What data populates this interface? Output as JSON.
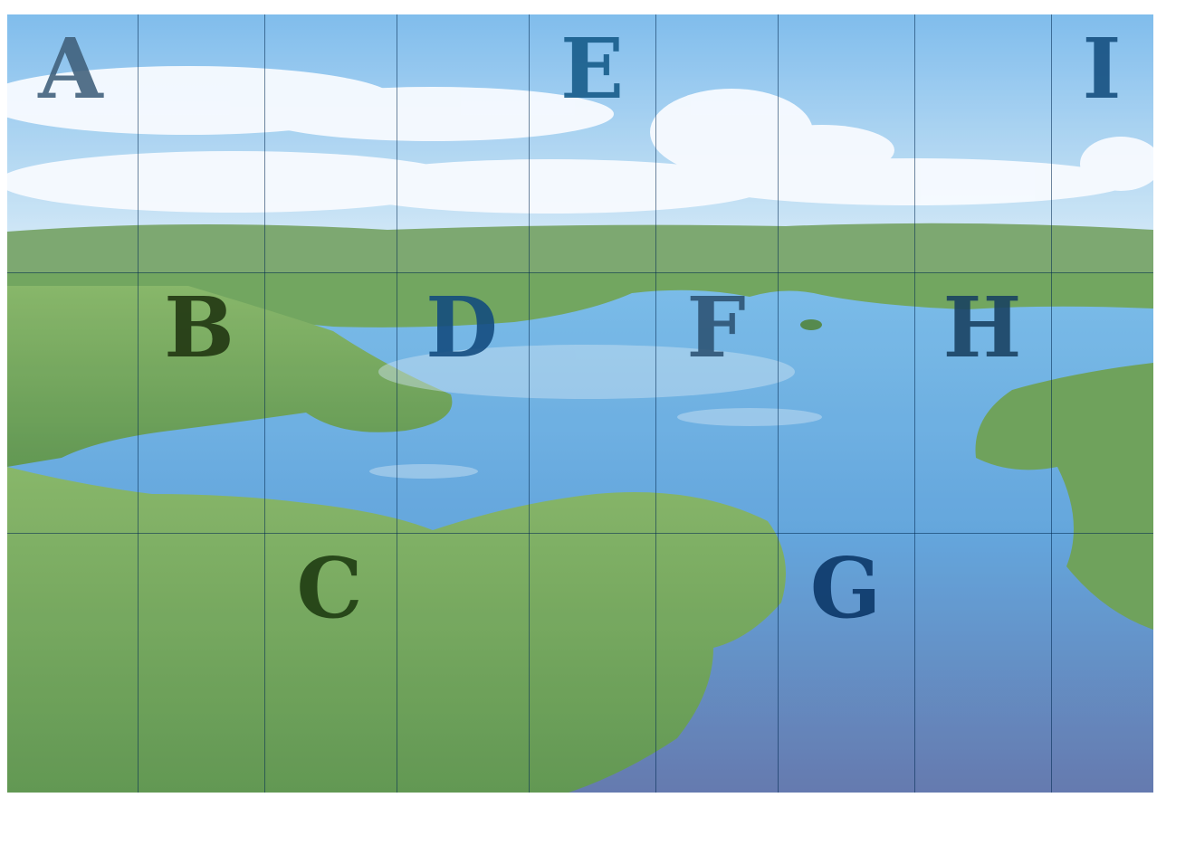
{
  "scene": {
    "description_icon": "lake-forest-landscape-image",
    "colors": {
      "sky_top": "#6fb4ea",
      "sky_bottom": "#cfe7f6",
      "cloud": "#f7fbff",
      "far_hills": "#5f9656",
      "water_light": "#5aa8e0",
      "water_dark": "#4a6aa8",
      "forest_light": "#7fb55e",
      "forest_dark": "#3f7a36"
    }
  },
  "grid": {
    "columns": 9,
    "rows": 3
  },
  "labels": [
    {
      "letter": "A",
      "color": "#3f5f7a"
    },
    {
      "letter": "B",
      "color": "#1f3410"
    },
    {
      "letter": "C",
      "color": "#1d3a10"
    },
    {
      "letter": "D",
      "color": "#124a7e"
    },
    {
      "letter": "E",
      "color": "#145a88"
    },
    {
      "letter": "F",
      "color": "#2c5273"
    },
    {
      "letter": "G",
      "color": "#0a3566"
    },
    {
      "letter": "H",
      "color": "#184060"
    },
    {
      "letter": "I",
      "color": "#134d7e"
    }
  ]
}
